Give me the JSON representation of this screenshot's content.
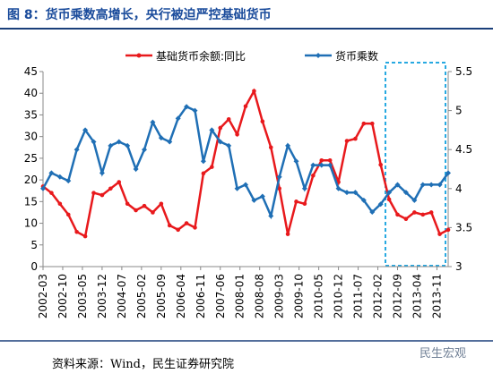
{
  "chart_data": {
    "type": "line",
    "title": "图 8：货币乘数高增长，央行被迫严控基础货币",
    "source": "资料来源：Wind，民生证券研究院",
    "watermark": "民生宏观",
    "x": [
      "2002-03",
      "2002-06",
      "2002-09",
      "2002-12",
      "2003-03",
      "2003-06",
      "2003-09",
      "2003-12",
      "2004-03",
      "2004-06",
      "2004-09",
      "2004-12",
      "2005-03",
      "2005-06",
      "2005-09",
      "2005-12",
      "2006-03",
      "2006-06",
      "2006-09",
      "2006-12",
      "2007-03",
      "2007-06",
      "2007-09",
      "2007-12",
      "2008-03",
      "2008-06",
      "2008-09",
      "2008-12",
      "2009-03",
      "2009-06",
      "2009-09",
      "2009-12",
      "2010-03",
      "2010-06",
      "2010-09",
      "2010-12",
      "2011-03",
      "2011-06",
      "2011-09",
      "2011-12",
      "2012-03",
      "2012-06",
      "2012-09",
      "2012-12",
      "2013-03",
      "2013-06",
      "2013-09",
      "2013-12",
      "2014-03"
    ],
    "xlim": [
      "2002-03",
      "2014-03"
    ],
    "xticks": [
      "2002-03",
      "2002-10",
      "2003-05",
      "2003-12",
      "2004-07",
      "2005-02",
      "2005-09",
      "2006-04",
      "2006-11",
      "2007-06",
      "2008-01",
      "2008-08",
      "2009-03",
      "2009-10",
      "2010-05",
      "2010-12",
      "2011-07",
      "2012-02",
      "2012-09",
      "2013-04",
      "2013-11"
    ],
    "ylim": [
      0,
      45
    ],
    "yticks": [
      0,
      5,
      10,
      15,
      20,
      25,
      30,
      35,
      40,
      45
    ],
    "y2lim": [
      3,
      5.5
    ],
    "y2ticks": [
      3,
      3.5,
      4,
      4.5,
      5,
      5.5
    ],
    "series": [
      {
        "name": "基础货币余额:同比",
        "color": "#e8191c",
        "axis": "y",
        "values": [
          18.5,
          17,
          14.5,
          12,
          8,
          7,
          17,
          16.5,
          18,
          19.5,
          14.5,
          13,
          14,
          12.5,
          14.5,
          9.5,
          8.5,
          10,
          9,
          21.5,
          23,
          32,
          34,
          30.5,
          37,
          40.5,
          33.5,
          27.5,
          18,
          7.5,
          15,
          14.5,
          21,
          24.5,
          24.5,
          19.5,
          29,
          29.5,
          33,
          33,
          23.5,
          15.5,
          12,
          11,
          12.5,
          12,
          12.5,
          7.5,
          8.5
        ]
      },
      {
        "name": "货币乘数",
        "color": "#1f6fb5",
        "axis": "y2",
        "values": [
          4.0,
          4.2,
          4.15,
          4.1,
          4.5,
          4.75,
          4.6,
          4.2,
          4.55,
          4.6,
          4.55,
          4.25,
          4.5,
          4.85,
          4.65,
          4.6,
          4.9,
          5.05,
          5.0,
          4.35,
          4.75,
          4.6,
          4.55,
          4.0,
          4.05,
          3.85,
          3.9,
          3.65,
          4.15,
          4.55,
          4.35,
          4.0,
          4.3,
          4.3,
          4.3,
          4.0,
          3.95,
          3.95,
          3.85,
          3.7,
          3.8,
          3.95,
          4.05,
          3.95,
          3.85,
          4.05,
          4.05,
          4.05,
          4.2
        ]
      }
    ]
  }
}
